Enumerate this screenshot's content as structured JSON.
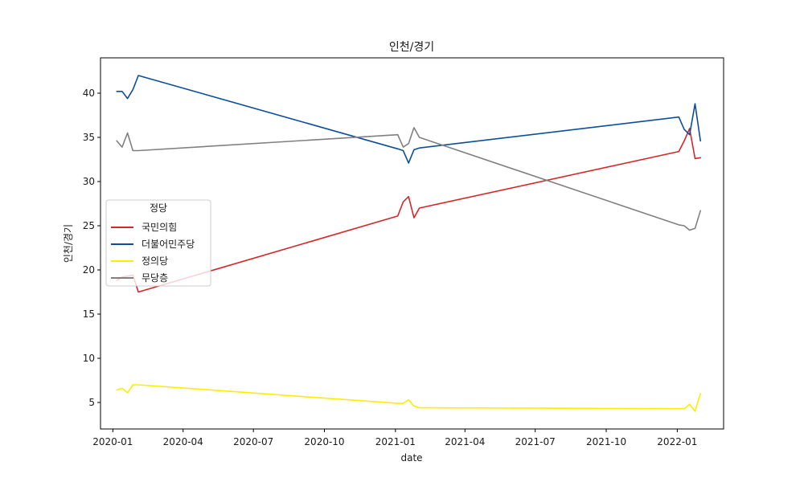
{
  "chart_data": {
    "type": "line",
    "title": "인천/경기",
    "xlabel": "date",
    "ylabel": "인천/경기",
    "xlim": [
      "2019-12-16",
      "2022-03-02"
    ],
    "ylim": [
      2.0,
      44.0
    ],
    "yticks": [
      5,
      10,
      15,
      20,
      25,
      30,
      35,
      40
    ],
    "xticks": [
      {
        "date": "2020-01-01",
        "label": "2020-01"
      },
      {
        "date": "2020-04-01",
        "label": "2020-04"
      },
      {
        "date": "2020-07-01",
        "label": "2020-07"
      },
      {
        "date": "2020-10-01",
        "label": "2020-10"
      },
      {
        "date": "2021-01-01",
        "label": "2021-01"
      },
      {
        "date": "2021-04-01",
        "label": "2021-04"
      },
      {
        "date": "2021-07-01",
        "label": "2021-07"
      },
      {
        "date": "2021-10-01",
        "label": "2021-10"
      },
      {
        "date": "2022-01-01",
        "label": "2022-01"
      }
    ],
    "grid": false,
    "legend": {
      "title": "정당",
      "placement": "center-left"
    },
    "series": [
      {
        "name": "국민의힘",
        "color": "#d62728",
        "points": [
          [
            "2020-01-06",
            18.8
          ],
          [
            "2020-01-13",
            19.2
          ],
          [
            "2020-01-20",
            19.3
          ],
          [
            "2020-01-27",
            19.4
          ],
          [
            "2020-02-03",
            17.5
          ],
          [
            "2021-01-04",
            26.1
          ],
          [
            "2021-01-11",
            27.7
          ],
          [
            "2021-01-18",
            28.3
          ],
          [
            "2021-01-25",
            25.9
          ],
          [
            "2021-02-01",
            27.0
          ],
          [
            "2022-01-03",
            33.4
          ],
          [
            "2022-01-10",
            34.6
          ],
          [
            "2022-01-17",
            36.0
          ],
          [
            "2022-01-24",
            32.6
          ],
          [
            "2022-01-31",
            32.7
          ]
        ]
      },
      {
        "name": "더불어민주당",
        "color": "#0b4f9c",
        "points": [
          [
            "2020-01-06",
            40.2
          ],
          [
            "2020-01-13",
            40.2
          ],
          [
            "2020-01-20",
            39.4
          ],
          [
            "2020-01-27",
            40.4
          ],
          [
            "2020-02-03",
            42.0
          ],
          [
            "2021-01-04",
            33.7
          ],
          [
            "2021-01-11",
            33.5
          ],
          [
            "2021-01-18",
            32.1
          ],
          [
            "2021-01-25",
            33.6
          ],
          [
            "2021-02-01",
            33.8
          ],
          [
            "2022-01-03",
            37.3
          ],
          [
            "2022-01-10",
            35.9
          ],
          [
            "2022-01-17",
            35.3
          ],
          [
            "2022-01-24",
            38.8
          ],
          [
            "2022-01-31",
            34.6
          ]
        ]
      },
      {
        "name": "정의당",
        "color": "#ffed00",
        "points": [
          [
            "2020-01-06",
            6.4
          ],
          [
            "2020-01-13",
            6.6
          ],
          [
            "2020-01-20",
            6.1
          ],
          [
            "2020-01-27",
            7.0
          ],
          [
            "2020-02-03",
            7.0
          ],
          [
            "2021-01-04",
            4.9
          ],
          [
            "2021-01-11",
            4.9
          ],
          [
            "2021-01-18",
            5.3
          ],
          [
            "2021-01-25",
            4.6
          ],
          [
            "2021-02-01",
            4.4
          ],
          [
            "2022-01-03",
            4.3
          ],
          [
            "2022-01-10",
            4.3
          ],
          [
            "2022-01-17",
            4.8
          ],
          [
            "2022-01-24",
            4.0
          ],
          [
            "2022-01-31",
            6.0
          ]
        ]
      },
      {
        "name": "무당층",
        "color": "#808080",
        "points": [
          [
            "2020-01-06",
            34.6
          ],
          [
            "2020-01-13",
            33.9
          ],
          [
            "2020-01-20",
            35.5
          ],
          [
            "2020-01-27",
            33.5
          ],
          [
            "2020-02-03",
            33.5
          ],
          [
            "2021-01-04",
            35.3
          ],
          [
            "2021-01-11",
            33.9
          ],
          [
            "2021-01-18",
            34.3
          ],
          [
            "2021-01-25",
            36.1
          ],
          [
            "2021-02-01",
            35.0
          ],
          [
            "2022-01-03",
            25.1
          ],
          [
            "2022-01-10",
            25.0
          ],
          [
            "2022-01-17",
            24.5
          ],
          [
            "2022-01-24",
            24.7
          ],
          [
            "2022-01-31",
            26.7
          ]
        ]
      }
    ]
  }
}
